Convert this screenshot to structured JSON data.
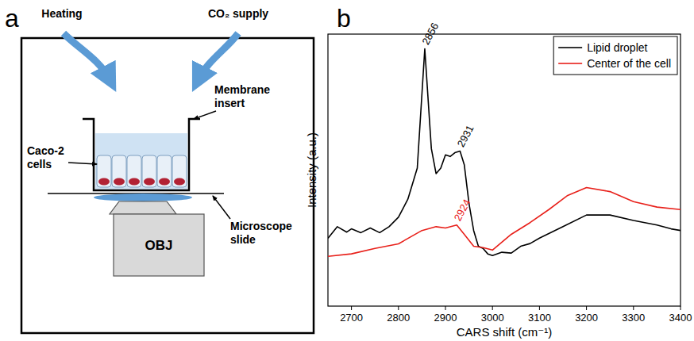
{
  "diagram": {
    "panel_label": "a",
    "heating": "Heating",
    "co2_supply": "CO₂ supply",
    "membrane_insert": "Membrane insert",
    "caco2_cells": "Caco-2 cells",
    "microscope_slide": "Microscope slide",
    "objective": "OBJ"
  },
  "chart_data": {
    "type": "line",
    "panel_label": "b",
    "xlabel": "CARS shift (cm⁻¹)",
    "ylabel": "Intensity (a.u.)",
    "xlim": [
      2650,
      3400
    ],
    "ylim": [
      0,
      100
    ],
    "xticks": [
      2700,
      2800,
      2900,
      3000,
      3100,
      3200,
      3300,
      3400
    ],
    "tick_labels": "x",
    "legend": "top-right",
    "series": [
      {
        "name": "Lipid droplet",
        "color": "#000000",
        "x": [
          2650,
          2670,
          2690,
          2700,
          2720,
          2740,
          2760,
          2780,
          2800,
          2820,
          2840,
          2856,
          2870,
          2880,
          2890,
          2900,
          2910,
          2920,
          2931,
          2940,
          2950,
          2960,
          2970,
          2980,
          2990,
          3000,
          3020,
          3040,
          3060,
          3080,
          3100,
          3150,
          3200,
          3250,
          3300,
          3350,
          3380,
          3400
        ],
        "values": [
          24.9,
          29.2,
          27.2,
          28.4,
          27,
          28.7,
          27,
          29.2,
          32.7,
          39.3,
          50.7,
          94.6,
          57.9,
          48.7,
          50.7,
          55.6,
          55,
          56.4,
          57,
          52,
          37.8,
          27.8,
          22,
          21.2,
          19.2,
          18.6,
          19.8,
          19.5,
          22,
          23,
          25,
          29.2,
          33.5,
          33.5,
          31.5,
          29.8,
          28.4,
          27.8
        ]
      },
      {
        "name": "Center of the cell",
        "color": "#e8201a",
        "x": [
          2650,
          2700,
          2750,
          2800,
          2850,
          2880,
          2900,
          2924,
          2940,
          2960,
          2980,
          3000,
          3040,
          3080,
          3120,
          3160,
          3200,
          3250,
          3300,
          3350,
          3400
        ],
        "values": [
          18.3,
          19.2,
          21.2,
          22.9,
          27.8,
          29.2,
          28.7,
          29.8,
          26.4,
          22,
          21.5,
          20.6,
          26.4,
          30.7,
          35.5,
          40.7,
          43.6,
          42.1,
          38.4,
          36.4,
          35.5
        ]
      }
    ],
    "annotations": [
      {
        "text": "2856",
        "x": 2856,
        "y": 94.6,
        "color": "#000000"
      },
      {
        "text": "2931",
        "x": 2931,
        "y": 57,
        "color": "#000000"
      },
      {
        "text": "2924",
        "x": 2924,
        "y": 29.8,
        "color": "#e8201a"
      }
    ]
  }
}
